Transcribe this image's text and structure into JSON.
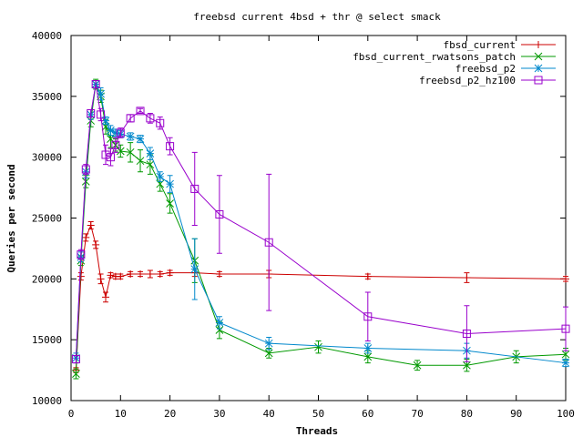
{
  "chart_data": {
    "type": "line",
    "title": "freebsd current 4bsd + thr @ select smack",
    "xlabel": "Threads",
    "ylabel": "Queries per second",
    "xlim": [
      0,
      100
    ],
    "ylim": [
      10000,
      40000
    ],
    "xticks": [
      "0",
      "10",
      "20",
      "30",
      "40",
      "50",
      "60",
      "70",
      "80",
      "90",
      "100"
    ],
    "yticks": [
      "10000",
      "15000",
      "20000",
      "25000",
      "30000",
      "35000",
      "40000"
    ],
    "grid": false,
    "legend_position": "top-right",
    "series": [
      {
        "name": "fbsd_current",
        "color": "#cc0000",
        "marker": "plus",
        "x": [
          1,
          2,
          3,
          4,
          5,
          6,
          7,
          8,
          9,
          10,
          12,
          14,
          16,
          18,
          20,
          25,
          30,
          40,
          60,
          80,
          100
        ],
        "y": [
          12500,
          20200,
          23400,
          24400,
          22800,
          20000,
          18500,
          20300,
          20200,
          20200,
          20400,
          20400,
          20400,
          20400,
          20500,
          20500,
          20400,
          20400,
          20200,
          20100,
          20000
        ],
        "err": [
          200,
          300,
          300,
          300,
          300,
          400,
          400,
          200,
          200,
          200,
          200,
          200,
          300,
          200,
          200,
          300,
          200,
          300,
          200,
          400,
          200
        ]
      },
      {
        "name": "fbsd_current_rwatsons_patch",
        "color": "#009900",
        "marker": "x",
        "x": [
          1,
          2,
          3,
          4,
          5,
          6,
          7,
          8,
          9,
          10,
          12,
          14,
          16,
          18,
          20,
          25,
          30,
          40,
          50,
          60,
          70,
          80,
          90,
          100
        ],
        "y": [
          12200,
          21500,
          28000,
          33000,
          36000,
          35000,
          32500,
          31500,
          31000,
          30500,
          30400,
          29700,
          29400,
          27800,
          26200,
          21500,
          15800,
          13900,
          14400,
          13600,
          12900,
          12900,
          13600,
          13800
        ],
        "err": [
          400,
          400,
          500,
          500,
          400,
          500,
          600,
          700,
          500,
          500,
          800,
          900,
          800,
          600,
          800,
          1800,
          700,
          400,
          500,
          500,
          400,
          500,
          500,
          500
        ]
      },
      {
        "name": "freebsd_p2",
        "color": "#0088cc",
        "marker": "star",
        "x": [
          1,
          2,
          3,
          4,
          5,
          6,
          7,
          8,
          9,
          10,
          12,
          14,
          16,
          18,
          20,
          25,
          30,
          40,
          60,
          80,
          100
        ],
        "y": [
          13500,
          21800,
          28800,
          33500,
          36000,
          35200,
          33000,
          32200,
          32000,
          31900,
          31700,
          31500,
          30300,
          28400,
          27800,
          20800,
          16400,
          14700,
          14300,
          14100,
          13100
        ],
        "err": [
          400,
          400,
          500,
          400,
          300,
          500,
          300,
          400,
          300,
          300,
          300,
          300,
          500,
          400,
          700,
          2500,
          500,
          500,
          400,
          600,
          300
        ]
      },
      {
        "name": "freebsd_p2_hz100",
        "color": "#9900cc",
        "marker": "square",
        "x": [
          1,
          2,
          3,
          4,
          5,
          6,
          7,
          8,
          9,
          10,
          12,
          14,
          16,
          18,
          20,
          25,
          30,
          40,
          60,
          80,
          100
        ],
        "y": [
          13400,
          22000,
          29000,
          33600,
          36000,
          33500,
          30200,
          30000,
          31000,
          32000,
          33200,
          33800,
          33200,
          32800,
          30900,
          27400,
          25300,
          23000,
          16900,
          15500,
          15900
        ],
        "err": [
          300,
          400,
          400,
          300,
          300,
          500,
          800,
          700,
          600,
          400,
          300,
          200,
          400,
          500,
          700,
          3000,
          3200,
          5600,
          2000,
          2300,
          1800
        ]
      }
    ]
  }
}
